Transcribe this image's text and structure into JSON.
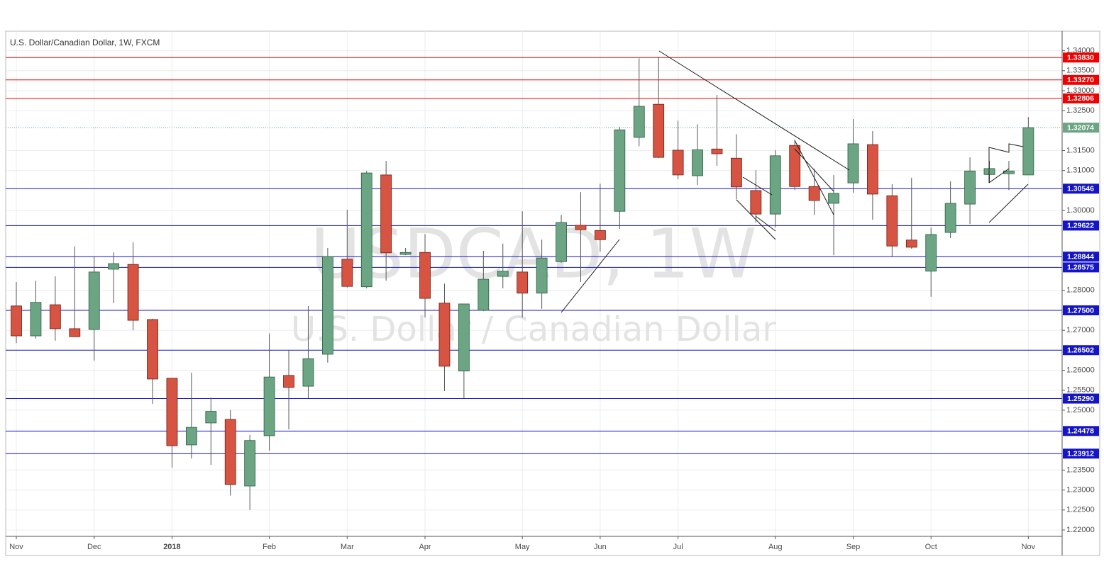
{
  "chart_data": {
    "type": "candlestick",
    "title": "U.S. Dollar/Canadian Dollar, 1W, FXCM",
    "watermark": "USDCAD, 1W",
    "watermark_subtitle": "U.S. Dollar / Canadian Dollar",
    "categories": [
      "Nov",
      null,
      null,
      null,
      "Dec",
      null,
      null,
      null,
      "2018",
      null,
      null,
      null,
      null,
      "Feb",
      null,
      null,
      null,
      "Mar",
      null,
      null,
      null,
      "Apr",
      null,
      null,
      null,
      null,
      "May",
      null,
      null,
      null,
      "Jun",
      null,
      null,
      null,
      "Jul",
      null,
      null,
      null,
      null,
      "Aug",
      null,
      null,
      null,
      "Sep",
      null,
      null,
      null,
      "Oct",
      null,
      null,
      null,
      null,
      "Nov"
    ],
    "open": [
      1.2761,
      1.2686,
      1.2764,
      1.2704,
      1.2702,
      1.2853,
      1.2865,
      1.2727,
      1.258,
      1.2413,
      1.2468,
      1.2477,
      1.231,
      1.2436,
      1.2587,
      1.256,
      1.264,
      1.2878,
      1.2809,
      1.3089,
      1.289,
      1.2895,
      1.2768,
      1.2598,
      1.275,
      1.2835,
      1.2846,
      1.2793,
      1.2872,
      1.2963,
      1.295,
      1.2998,
      1.3183,
      1.3266,
      1.3151,
      1.3087,
      1.3154,
      1.3131,
      1.305,
      1.2991,
      1.3163,
      1.306,
      1.3018,
      1.3069,
      1.3165,
      1.3037,
      1.2926,
      1.2848,
      1.2945,
      1.3016,
      1.309,
      1.3092,
      1.3089
    ],
    "high": [
      1.2821,
      1.2824,
      1.2835,
      1.291,
      1.2885,
      1.2895,
      1.292,
      1.2729,
      1.258,
      1.2594,
      1.2532,
      1.25,
      1.2438,
      1.2692,
      1.2651,
      1.2761,
      1.2906,
      1.3002,
      1.3099,
      1.3124,
      1.2906,
      1.2941,
      1.2817,
      1.2766,
      1.2899,
      1.2917,
      1.2998,
      1.2927,
      1.2989,
      1.3046,
      1.3067,
      1.3209,
      1.3381,
      1.3385,
      1.3225,
      1.3216,
      1.3289,
      1.3191,
      1.3101,
      1.3151,
      1.3177,
      1.3105,
      1.3089,
      1.3229,
      1.3199,
      1.3066,
      1.3082,
      1.2957,
      1.3073,
      1.3133,
      1.3124,
      1.3124,
      1.3234
    ],
    "low": [
      1.2668,
      1.2679,
      1.2674,
      1.2683,
      1.2624,
      1.2768,
      1.27,
      1.2516,
      1.2356,
      1.2379,
      1.2363,
      1.2286,
      1.225,
      1.2399,
      1.2452,
      1.253,
      1.2619,
      1.2807,
      1.2805,
      1.2824,
      1.2888,
      1.2732,
      1.2548,
      1.253,
      1.2748,
      1.2805,
      1.2732,
      1.2754,
      1.2869,
      1.2821,
      1.2897,
      1.2954,
      1.3161,
      1.3131,
      1.3078,
      1.3064,
      1.3112,
      1.3028,
      1.297,
      1.2957,
      1.3051,
      1.2989,
      1.2888,
      1.3044,
      1.2977,
      1.2885,
      1.2904,
      1.2784,
      1.2931,
      1.2966,
      1.3069,
      1.3051,
      1.3089
    ],
    "close": [
      1.2686,
      1.277,
      1.2704,
      1.2684,
      1.2846,
      1.2867,
      1.2725,
      1.2578,
      1.2411,
      1.2457,
      1.2497,
      1.2314,
      1.2424,
      1.2583,
      1.2557,
      1.2629,
      1.2885,
      1.281,
      1.3094,
      1.2894,
      1.2895,
      1.278,
      1.261,
      1.2766,
      1.2828,
      1.2848,
      1.2793,
      1.2881,
      1.297,
      1.2952,
      1.2927,
      1.3202,
      1.3261,
      1.3133,
      1.3089,
      1.3152,
      1.3142,
      1.3059,
      1.2991,
      1.3137,
      1.306,
      1.3025,
      1.3043,
      1.3167,
      1.3041,
      1.2911,
      1.2908,
      1.294,
      1.3018,
      1.3099,
      1.3105,
      1.3099,
      1.32074
    ],
    "up_color": "#6ba583",
    "down_color": "#d75442",
    "ylim": [
      1.2184,
      1.3449
    ],
    "yticks": [
      {
        "value": 1.22,
        "label": "1.22000"
      },
      {
        "value": 1.225,
        "label": "1.22500"
      },
      {
        "value": 1.23,
        "label": "1.23000"
      },
      {
        "value": 1.235,
        "label": "1.23500"
      },
      {
        "value": 1.25,
        "label": "1.25000"
      },
      {
        "value": 1.255,
        "label": "1.25500"
      },
      {
        "value": 1.26,
        "label": "1.26000"
      },
      {
        "value": 1.27,
        "label": "1.27000"
      },
      {
        "value": 1.28,
        "label": "1.28000"
      },
      {
        "value": 1.3,
        "label": "1.30000"
      },
      {
        "value": 1.31,
        "label": "1.31000"
      },
      {
        "value": 1.315,
        "label": "1.31500"
      },
      {
        "value": 1.325,
        "label": "1.32500"
      },
      {
        "value": 1.33,
        "label": "1.33000"
      },
      {
        "value": 1.335,
        "label": "1.33500"
      },
      {
        "value": 1.34,
        "label": "1.34000"
      }
    ],
    "grid": true,
    "levels": [
      {
        "value": 1.3383,
        "label": "1.33830",
        "color": "#f00000"
      },
      {
        "value": 1.3327,
        "label": "1.33270",
        "color": "#f00000"
      },
      {
        "value": 1.32806,
        "label": "1.32806",
        "color": "#f00000"
      },
      {
        "value": 1.32074,
        "label": "1.32074",
        "color": "#6ba583",
        "style": "dotted"
      },
      {
        "value": 1.30546,
        "label": "1.30546",
        "color": "#1515c8"
      },
      {
        "value": 1.29622,
        "label": "1.29622",
        "color": "#1515c8"
      },
      {
        "value": 1.28844,
        "label": "1.28844",
        "color": "#1515c8"
      },
      {
        "value": 1.28575,
        "label": "1.28575",
        "color": "#1515c8"
      },
      {
        "value": 1.275,
        "label": "1.27500",
        "color": "#1515c8"
      },
      {
        "value": 1.26502,
        "label": "1.26502",
        "color": "#1515c8"
      },
      {
        "value": 1.2529,
        "label": "1.25290",
        "color": "#1515c8"
      },
      {
        "value": 1.24478,
        "label": "1.24478",
        "color": "#1515c8"
      },
      {
        "value": 1.23912,
        "label": "1.23912",
        "color": "#1515c8"
      }
    ]
  }
}
